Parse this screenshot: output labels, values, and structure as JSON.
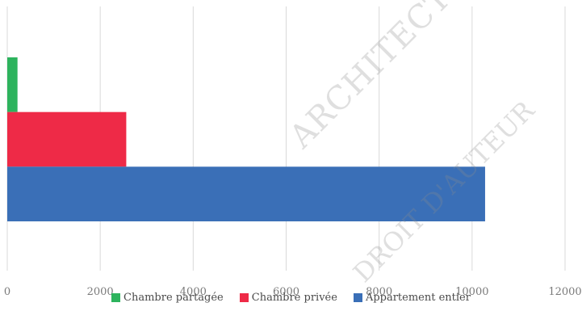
{
  "chart_data": {
    "type": "bar",
    "orientation": "horizontal",
    "stacked": false,
    "categories": [
      ""
    ],
    "xlim": [
      0,
      12000
    ],
    "x_ticks": [
      "0",
      "2000",
      "4000",
      "6000",
      "8000",
      "10000",
      "12000"
    ],
    "grid": true,
    "legend_position": "bottom",
    "series": [
      {
        "name": "Chambre partagée",
        "values": [
          220
        ],
        "color": "#2db35d"
      },
      {
        "name": "Chambre privée",
        "values": [
          2560
        ],
        "color": "#ee2a47"
      },
      {
        "name": "Appartement entier",
        "values": [
          10280
        ],
        "color": "#3a6fb7"
      }
    ]
  },
  "watermark": {
    "line1": "ARCHITECTURE DE NA",
    "line2": "DROIT D'AUTEUR"
  }
}
